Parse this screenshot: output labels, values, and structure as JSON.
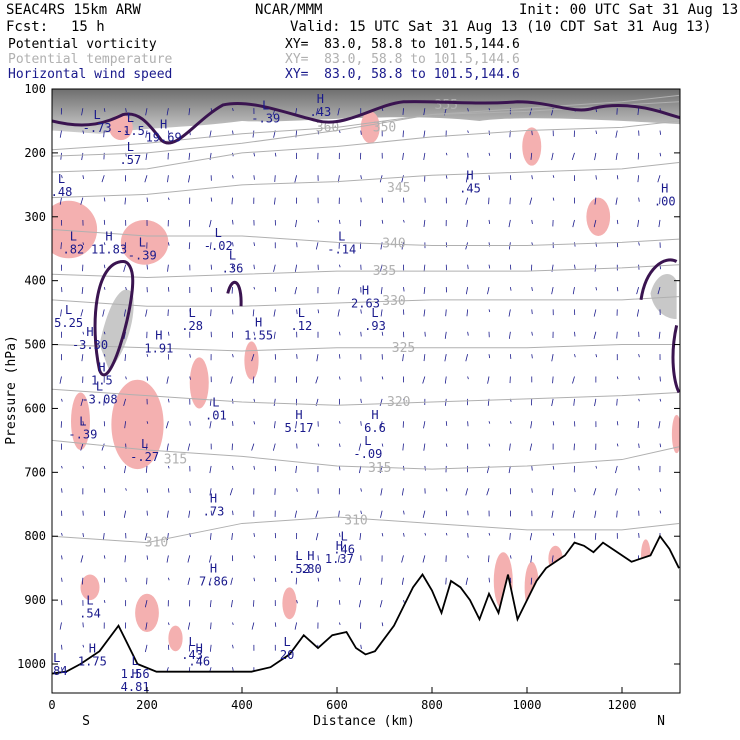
{
  "header": {
    "model": "SEAC4RS 15km ARW",
    "org": "NCAR/MMM",
    "init": "Init: 00 UTC Sat 31 Aug 13",
    "fcst_label": "Fcst:",
    "fcst_value": "15 h",
    "valid": "Valid: 15 UTC Sat 31 Aug 13 (10 CDT Sat 31 Aug 13)"
  },
  "legend": [
    {
      "field": "Potential vorticity",
      "xy": "XY=  83.0, 58.8 to 101.5,144.6",
      "color": "#000000"
    },
    {
      "field": "Potential temperature",
      "xy": "XY=  83.0, 58.8 to 101.5,144.6",
      "color": "#b0b0b0"
    },
    {
      "field": "Horizontal wind speed",
      "xy": "XY=  83.0, 58.8 to 101.5,144.6",
      "color": "#1a1a8c"
    }
  ],
  "chart_data": {
    "type": "cross-section",
    "xlabel": "Distance (km)",
    "ylabel": "Pressure (hPa)",
    "xlim": [
      0,
      1320
    ],
    "ylim": [
      1050,
      100
    ],
    "x_ticks": [
      0,
      200,
      400,
      600,
      800,
      1000,
      1200
    ],
    "y_ticks": [
      100,
      200,
      300,
      400,
      500,
      600,
      700,
      800,
      900,
      1000
    ],
    "end_labels": {
      "left": "S",
      "right": "N"
    },
    "colors": {
      "theta": "#b0b0b0",
      "wind": "#1a1a8c",
      "terrain": "#000000",
      "pv": "#3a1450",
      "shade_pos": "#f4b0b0"
    },
    "theta_isentropes": [
      {
        "label": "360",
        "x": [
          0,
          200,
          400,
          600,
          800,
          1000,
          1200,
          1320
        ],
        "p": [
          195,
          185,
          170,
          160,
          140,
          135,
          125,
          120
        ],
        "lx": 580,
        "lp": 160
      },
      {
        "label": "355",
        "x": [
          0,
          200,
          400,
          600,
          800,
          1000,
          1200,
          1320
        ],
        "p": [
          205,
          200,
          185,
          165,
          140,
          130,
          120,
          110
        ],
        "lx": 830,
        "lp": 125
      },
      {
        "label": "350",
        "x": [
          0,
          200,
          400,
          600,
          800,
          1000,
          1200,
          1320
        ],
        "p": [
          230,
          225,
          200,
          190,
          175,
          165,
          160,
          150
        ],
        "lx": 700,
        "lp": 160
      },
      {
        "label": "345",
        "x": [
          0,
          200,
          400,
          600,
          800,
          1000,
          1200,
          1320
        ],
        "p": [
          270,
          265,
          250,
          245,
          235,
          230,
          225,
          215
        ],
        "lx": 730,
        "lp": 255
      },
      {
        "label": "340",
        "x": [
          0,
          200,
          400,
          600,
          800,
          1000,
          1200,
          1320
        ],
        "p": [
          320,
          330,
          330,
          340,
          345,
          345,
          340,
          335
        ],
        "lx": 720,
        "lp": 342
      },
      {
        "label": "335",
        "x": [
          0,
          200,
          400,
          600,
          800,
          1000,
          1200,
          1320
        ],
        "p": [
          390,
          395,
          390,
          385,
          385,
          385,
          380,
          375
        ],
        "lx": 700,
        "lp": 385
      },
      {
        "label": "330",
        "x": [
          0,
          200,
          400,
          600,
          800,
          1000,
          1200,
          1320
        ],
        "p": [
          430,
          440,
          440,
          435,
          430,
          430,
          430,
          425
        ],
        "lx": 720,
        "lp": 432
      },
      {
        "label": "325",
        "x": [
          0,
          200,
          400,
          600,
          800,
          1000,
          1200,
          1320
        ],
        "p": [
          500,
          505,
          510,
          505,
          505,
          505,
          500,
          500
        ],
        "lx": 740,
        "lp": 505
      },
      {
        "label": "320",
        "x": [
          0,
          200,
          400,
          600,
          800,
          1000,
          1200,
          1320
        ],
        "p": [
          570,
          580,
          590,
          595,
          590,
          585,
          580,
          575
        ],
        "lx": 730,
        "lp": 590
      },
      {
        "label": "315",
        "x": [
          0,
          200,
          400,
          600,
          800,
          1000,
          1200,
          1320
        ],
        "p": [
          650,
          665,
          675,
          690,
          695,
          690,
          680,
          660
        ],
        "lx": 690,
        "lp": 693
      },
      {
        "label": "310",
        "x": [
          0,
          200,
          400,
          600,
          800,
          1000,
          1200,
          1320
        ],
        "p": [
          800,
          810,
          780,
          770,
          780,
          790,
          790,
          780
        ],
        "lx": 640,
        "lp": 775
      }
    ],
    "theta_extra_labels": [
      {
        "label": "315",
        "x": 260,
        "p": 680
      },
      {
        "label": "310",
        "x": 220,
        "p": 810
      }
    ],
    "terrain": {
      "x": [
        0,
        30,
        60,
        100,
        140,
        180,
        220,
        260,
        300,
        340,
        380,
        420,
        460,
        500,
        530,
        560,
        590,
        620,
        640,
        660,
        680,
        700,
        720,
        740,
        760,
        780,
        800,
        820,
        840,
        860,
        880,
        900,
        920,
        940,
        960,
        980,
        1000,
        1020,
        1040,
        1060,
        1080,
        1100,
        1120,
        1140,
        1160,
        1180,
        1200,
        1220,
        1240,
        1260,
        1280,
        1300,
        1320
      ],
      "p": [
        1015,
        1012,
        1000,
        980,
        940,
        1000,
        1012,
        1012,
        1012,
        1012,
        1012,
        1012,
        1005,
        985,
        955,
        975,
        955,
        950,
        975,
        985,
        980,
        960,
        940,
        910,
        880,
        860,
        885,
        920,
        870,
        880,
        900,
        930,
        890,
        920,
        860,
        930,
        900,
        870,
        850,
        840,
        830,
        810,
        815,
        825,
        810,
        820,
        830,
        840,
        835,
        830,
        800,
        820,
        850
      ]
    },
    "pv_max": {
      "values": [
        "19.69",
        "2.63",
        "1.91",
        "1.5",
        ".00",
        ".93"
      ]
    },
    "extrema": [
      {
        "type": "L",
        "value": "-.73",
        "x": 95,
        "p": 150
      },
      {
        "type": "L",
        "value": "-1.5",
        "x": 165,
        "p": 155
      },
      {
        "type": "H",
        "value": "19.69",
        "x": 235,
        "p": 165
      },
      {
        "type": "L",
        "value": "-.39",
        "x": 450,
        "p": 135
      },
      {
        "type": "H",
        "value": ".43",
        "x": 565,
        "p": 125
      },
      {
        "type": "L",
        "value": ".57",
        "x": 165,
        "p": 200
      },
      {
        "type": "L",
        "value": ".48",
        "x": 20,
        "p": 250
      },
      {
        "type": "H",
        "value": ".45",
        "x": 880,
        "p": 245
      },
      {
        "type": "H",
        "value": ".00",
        "x": 1290,
        "p": 265
      },
      {
        "type": "L",
        "value": ".82",
        "x": 45,
        "p": 340
      },
      {
        "type": "H",
        "value": "11.83",
        "x": 120,
        "p": 340
      },
      {
        "type": "L",
        "value": "-.39",
        "x": 190,
        "p": 350
      },
      {
        "type": "L",
        "value": "-.02",
        "x": 350,
        "p": 335
      },
      {
        "type": "L",
        "value": ".36",
        "x": 380,
        "p": 370
      },
      {
        "type": "L",
        "value": "-.14",
        "x": 610,
        "p": 340
      },
      {
        "type": "H",
        "value": "2.63",
        "x": 660,
        "p": 425
      },
      {
        "type": "L",
        "value": "5.25",
        "x": 35,
        "p": 455
      },
      {
        "type": "H",
        "value": "-3.30",
        "x": 80,
        "p": 490
      },
      {
        "type": "L",
        "value": ".28",
        "x": 295,
        "p": 460
      },
      {
        "type": "H",
        "value": "1.91",
        "x": 225,
        "p": 495
      },
      {
        "type": "H",
        "value": "1.55",
        "x": 435,
        "p": 475
      },
      {
        "type": "L",
        "value": ".12",
        "x": 525,
        "p": 460
      },
      {
        "type": "L",
        "value": ".93",
        "x": 680,
        "p": 460
      },
      {
        "type": "H",
        "value": "1.5",
        "x": 105,
        "p": 545
      },
      {
        "type": "L",
        "value": "-3.08",
        "x": 100,
        "p": 575
      },
      {
        "type": "L",
        "value": ".01",
        "x": 345,
        "p": 600
      },
      {
        "type": "L",
        "value": "-.39",
        "x": 65,
        "p": 630
      },
      {
        "type": "H",
        "value": "5.17",
        "x": 520,
        "p": 620
      },
      {
        "type": "L",
        "value": "-.27",
        "x": 195,
        "p": 665
      },
      {
        "type": "H",
        "value": "6.6",
        "x": 680,
        "p": 620
      },
      {
        "type": "L",
        "value": "-.09",
        "x": 665,
        "p": 660
      },
      {
        "type": "H",
        "value": ".73",
        "x": 340,
        "p": 750
      },
      {
        "type": "H",
        "value": "7.86",
        "x": 340,
        "p": 860
      },
      {
        "type": "L",
        "value": ".52",
        "x": 520,
        "p": 840
      },
      {
        "type": "H",
        "value": ".80",
        "x": 545,
        "p": 840
      },
      {
        "type": "L",
        "value": ".46",
        "x": 615,
        "p": 810
      },
      {
        "type": "H",
        "value": "1.37",
        "x": 605,
        "p": 825
      },
      {
        "type": "L",
        "value": ".54",
        "x": 80,
        "p": 910
      },
      {
        "type": "H",
        "value": "1.75",
        "x": 85,
        "p": 985
      },
      {
        "type": "L",
        "value": ".84",
        "x": 10,
        "p": 1000
      },
      {
        "type": "L",
        "value": ".43",
        "x": 295,
        "p": 975
      },
      {
        "type": "H",
        "value": ".46",
        "x": 310,
        "p": 985
      },
      {
        "type": "L",
        "value": "1.56",
        "x": 175,
        "p": 1005
      },
      {
        "type": "H",
        "value": "4.81",
        "x": 175,
        "p": 1025
      },
      {
        "type": "L",
        "value": "20",
        "x": 495,
        "p": 975
      }
    ],
    "grid": false
  }
}
